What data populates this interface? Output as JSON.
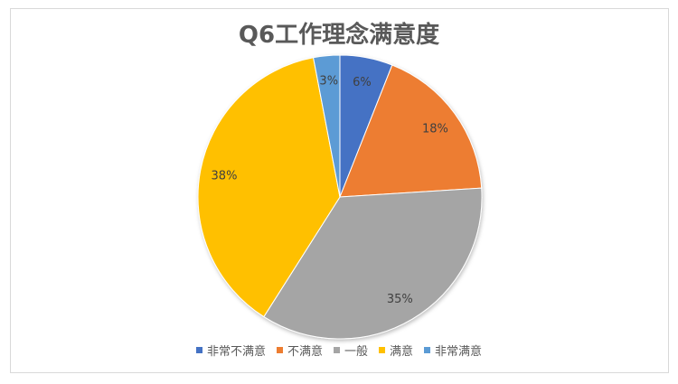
{
  "chart_data": {
    "type": "pie",
    "title": "Q6工作理念满意度",
    "categories": [
      "非常不满意",
      "不满意",
      "一般",
      "满意",
      "非常满意"
    ],
    "values": [
      6,
      18,
      35,
      38,
      3
    ],
    "labels": [
      "6%",
      "18%",
      "35%",
      "38%",
      "3%"
    ],
    "colors": [
      "#4472c4",
      "#ed7d31",
      "#a5a5a5",
      "#ffc000",
      "#5b9bd5"
    ],
    "legend_position": "bottom"
  }
}
